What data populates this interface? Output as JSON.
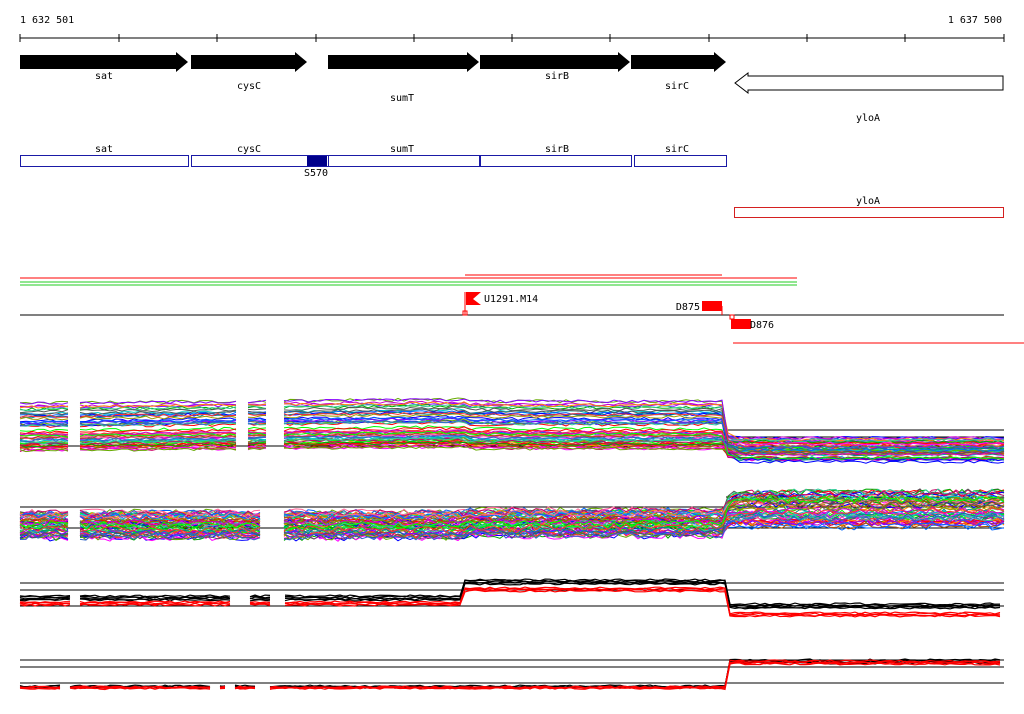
{
  "ruler": {
    "start_label": "1 632 501",
    "end_label": "1 637 500"
  },
  "genes": [
    {
      "name": "sat",
      "strand": "+"
    },
    {
      "name": "cysC",
      "strand": "+"
    },
    {
      "name": "sumT",
      "strand": "+"
    },
    {
      "name": "sirB",
      "strand": "+"
    },
    {
      "name": "sirC",
      "strand": "+"
    },
    {
      "name": "yloA",
      "strand": "-"
    }
  ],
  "blue_track": {
    "boxes": [
      "sat",
      "cysC",
      "sumT",
      "sirB",
      "sirC"
    ],
    "feature_label": "S570",
    "color": "#1a1aa6",
    "fill": "#00008b"
  },
  "red_track": {
    "boxes": [
      "yloA"
    ],
    "color": "#d42020"
  },
  "markers": [
    {
      "label": "U1291.M14"
    },
    {
      "label": "D875"
    },
    {
      "label": "D876"
    }
  ],
  "colors": {
    "red": "#ff0000",
    "green": "#22cc22",
    "black": "#000000"
  }
}
